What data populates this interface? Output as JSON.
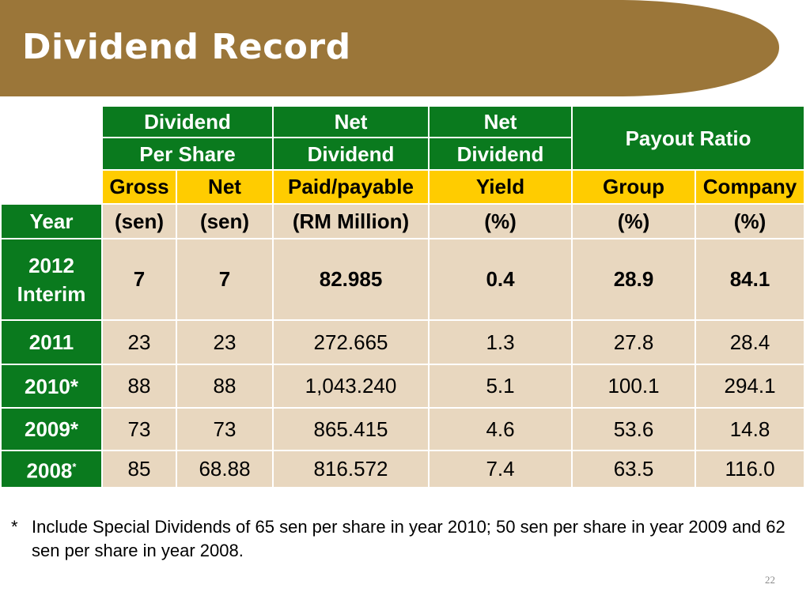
{
  "slide": {
    "title": "Dividend Record",
    "colors": {
      "banner": "#9b7639",
      "header_green": "#0a7a1e",
      "header_yellow": "#ffcc00",
      "cell_bg": "#e8d7bf"
    },
    "footnote": {
      "marker": "*",
      "text": "Include Special Dividends of 65 sen per share in year 2010; 50 sen per share in year 2009 and 62 sen per share in year 2008."
    },
    "page_number": "22"
  },
  "table": {
    "header": {
      "dps": [
        "Dividend",
        "Per Share"
      ],
      "net_dividend": [
        "Net",
        "Dividend"
      ],
      "net_dividend_yield": [
        "Net",
        "Dividend"
      ],
      "payout_ratio": "Payout Ratio",
      "sub": [
        "Gross",
        "Net",
        "Paid/payable",
        "Yield",
        "Group",
        "Company"
      ],
      "year": "Year",
      "units": [
        "(sen)",
        "(sen)",
        "(RM Million)",
        "(%)",
        "(%)",
        "(%)"
      ]
    },
    "rows": [
      {
        "year": [
          "2012",
          "Interim"
        ],
        "values": [
          "7",
          "7",
          "82.985",
          "0.4",
          "28.9",
          "84.1"
        ]
      },
      {
        "year": [
          "2011"
        ],
        "values": [
          "23",
          "23",
          "272.665",
          "1.3",
          "27.8",
          "28.4"
        ]
      },
      {
        "year": [
          "2010*"
        ],
        "values": [
          "88",
          "88",
          "1,043.240",
          "5.1",
          "100.1",
          "294.1"
        ]
      },
      {
        "year": [
          "2009*"
        ],
        "values": [
          "73",
          "73",
          "865.415",
          "4.6",
          "53.6",
          "14.8"
        ]
      },
      {
        "year": [
          "2008",
          "*"
        ],
        "values": [
          "85",
          "68.88",
          "816.572",
          "7.4",
          "63.5",
          "116.0"
        ]
      }
    ]
  }
}
